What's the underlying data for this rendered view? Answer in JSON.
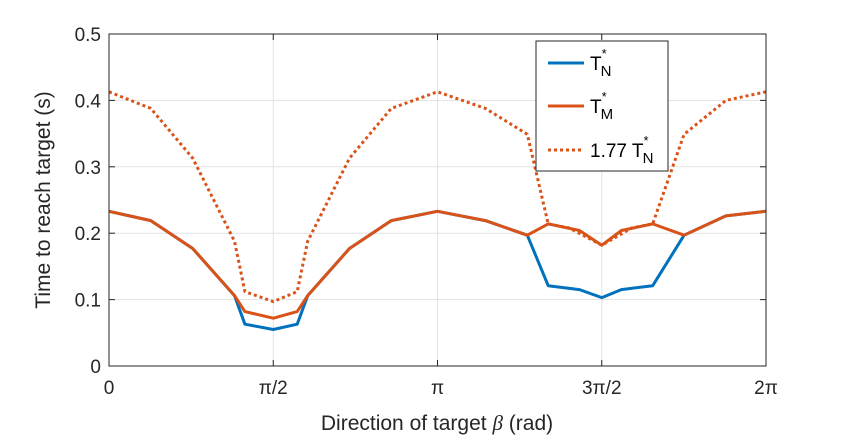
{
  "chart_data": {
    "type": "line",
    "xlabel_prefix": "Direction of target ",
    "xlabel_symbol": "β",
    "xlabel_suffix": " (rad)",
    "ylabel": "Time to reach target (s)",
    "xlim": [
      0,
      6.2832
    ],
    "ylim": [
      0,
      0.5
    ],
    "grid": true,
    "legend_position": "top-right",
    "x_ticks": [
      {
        "value": 0,
        "label": "0"
      },
      {
        "value": 1.5708,
        "label": "π/2"
      },
      {
        "value": 3.1416,
        "label": "π"
      },
      {
        "value": 4.7124,
        "label": "3π/2"
      },
      {
        "value": 6.2832,
        "label": "2π"
      }
    ],
    "y_ticks": [
      {
        "value": 0,
        "label": "0"
      },
      {
        "value": 0.1,
        "label": "0.1"
      },
      {
        "value": 0.2,
        "label": "0.2"
      },
      {
        "value": 0.3,
        "label": "0.3"
      },
      {
        "value": 0.4,
        "label": "0.4"
      },
      {
        "value": 0.5,
        "label": "0.5"
      }
    ],
    "series": [
      {
        "name": "T_N^*",
        "legend_main": "T",
        "legend_sub": "N",
        "legend_sup": "*",
        "color": "#0072BD",
        "style": "solid",
        "x": [
          0,
          0.4,
          0.8,
          1.2,
          1.3,
          1.5708,
          1.8,
          1.9,
          2.3,
          2.7,
          3.1416,
          3.6,
          4.0,
          4.2,
          4.5,
          4.7124,
          4.9,
          5.2,
          5.5,
          5.9,
          6.2832
        ],
        "y": [
          0.233,
          0.219,
          0.177,
          0.106,
          0.063,
          0.055,
          0.063,
          0.106,
          0.177,
          0.219,
          0.233,
          0.219,
          0.197,
          0.121,
          0.115,
          0.103,
          0.115,
          0.121,
          0.197,
          0.226,
          0.233
        ]
      },
      {
        "name": "T_M^*",
        "legend_main": "T",
        "legend_sub": "M",
        "legend_sup": "*",
        "color": "#D95319",
        "style": "solid",
        "x": [
          0,
          0.4,
          0.8,
          1.2,
          1.3,
          1.5708,
          1.8,
          1.9,
          2.3,
          2.7,
          3.1416,
          3.6,
          4.0,
          4.2,
          4.5,
          4.7124,
          4.9,
          5.2,
          5.5,
          5.9,
          6.2832
        ],
        "y": [
          0.233,
          0.219,
          0.177,
          0.106,
          0.082,
          0.072,
          0.082,
          0.106,
          0.177,
          0.219,
          0.233,
          0.219,
          0.197,
          0.214,
          0.204,
          0.182,
          0.204,
          0.214,
          0.197,
          0.226,
          0.233
        ]
      },
      {
        "name": "1.77 T_N^*",
        "legend_main": "1.77 T",
        "legend_sub": "N",
        "legend_sup": "*",
        "color": "#D95319",
        "style": "dotted",
        "x": [
          0,
          0.4,
          0.8,
          1.2,
          1.3,
          1.5708,
          1.8,
          1.9,
          2.3,
          2.7,
          3.1416,
          3.6,
          4.0,
          4.2,
          4.4,
          4.7124,
          5.0,
          5.2,
          5.5,
          5.9,
          6.2832
        ],
        "y": [
          0.413,
          0.388,
          0.313,
          0.188,
          0.112,
          0.097,
          0.112,
          0.188,
          0.313,
          0.388,
          0.413,
          0.388,
          0.349,
          0.214,
          0.208,
          0.182,
          0.208,
          0.214,
          0.349,
          0.4,
          0.413
        ]
      }
    ]
  }
}
